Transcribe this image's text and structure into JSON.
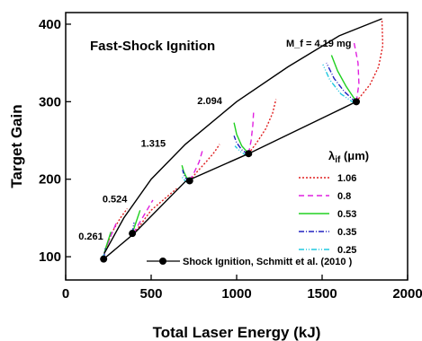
{
  "chart_data": {
    "type": "line",
    "title": "Fast-Shock Ignition",
    "xlabel": "Total Laser Energy   (kJ)",
    "ylabel": "Target Gain",
    "xlim": [
      0,
      2000
    ],
    "ylim": [
      70,
      415
    ],
    "xticks": [
      0,
      500,
      1000,
      1500,
      2000
    ],
    "yticks": [
      100,
      200,
      300,
      400
    ],
    "grid": false,
    "legend_title": "λ_if (μm)",
    "legend_position": "right",
    "mass_annotation": "M_f = 4.19 mg",
    "mass_labels": [
      {
        "text": "0.261",
        "x": 75,
        "y": 122
      },
      {
        "text": "0.524",
        "x": 215,
        "y": 170
      },
      {
        "text": "1.315",
        "x": 440,
        "y": 242
      },
      {
        "text": "2.094",
        "x": 770,
        "y": 297
      }
    ],
    "envelope_upper": {
      "x": [
        225,
        340,
        500,
        700,
        1000,
        1300,
        1600,
        1850
      ],
      "y": [
        104,
        150,
        200,
        245,
        300,
        345,
        385,
        407
      ]
    },
    "envelope_lower": {
      "x": [
        222,
        400,
        700,
        1070,
        1700
      ],
      "y": [
        97,
        130,
        197,
        233,
        300
      ]
    },
    "shock_ignition": {
      "name": "Shock Ignition, Schmitt et al.   (2010 )",
      "x": [
        222,
        390,
        725,
        1070,
        1700
      ],
      "y": [
        97,
        130,
        198,
        233,
        300
      ]
    },
    "series": [
      {
        "name": "1.06",
        "color": "#e02020",
        "dash": "2,2",
        "curves": [
          {
            "x": [
              225,
              250,
              280,
              320,
              360
            ],
            "y": [
              104,
              120,
              135,
              150,
              162
            ]
          },
          {
            "x": [
              400,
              450,
              500,
              580,
              650
            ],
            "y": [
              130,
              145,
              160,
              175,
              188
            ]
          },
          {
            "x": [
              725,
              770,
              820,
              870,
              900
            ],
            "y": [
              198,
              210,
              222,
              235,
              245
            ]
          },
          {
            "x": [
              1070,
              1120,
              1170,
              1210,
              1230
            ],
            "y": [
              233,
              248,
              265,
              285,
              303
            ]
          },
          {
            "x": [
              1700,
              1780,
              1830,
              1855,
              1850
            ],
            "y": [
              300,
              322,
              345,
              372,
              407
            ]
          }
        ]
      },
      {
        "name": "0.8",
        "color": "#e020e0",
        "dash": "6,4",
        "curves": [
          {
            "x": [
              225,
              245,
              270,
              295
            ],
            "y": [
              104,
              116,
              130,
              143
            ]
          },
          {
            "x": [
              395,
              430,
              470,
              510
            ],
            "y": [
              130,
              143,
              158,
              173
            ]
          },
          {
            "x": [
              725,
              750,
              780,
              800
            ],
            "y": [
              198,
              208,
              222,
              237
            ]
          },
          {
            "x": [
              1070,
              1085,
              1095,
              1100
            ],
            "y": [
              233,
              250,
              270,
              290
            ]
          },
          {
            "x": [
              1700,
              1715,
              1710,
              1685
            ],
            "y": [
              300,
              323,
              350,
              378
            ]
          }
        ]
      },
      {
        "name": "0.53",
        "color": "#20d020",
        "dash": "",
        "curves": [
          {
            "x": [
              225,
              235,
              250,
              265
            ],
            "y": [
              104,
              112,
              122,
              132
            ]
          },
          {
            "x": [
              390,
              405,
              420,
              435
            ],
            "y": [
              130,
              140,
              150,
              160
            ]
          },
          {
            "x": [
              725,
              705,
              690,
              680
            ],
            "y": [
              198,
              203,
              210,
              218
            ]
          },
          {
            "x": [
              1070,
              1030,
              1000,
              985
            ],
            "y": [
              233,
              243,
              258,
              273
            ]
          },
          {
            "x": [
              1700,
              1640,
              1590,
              1555
            ],
            "y": [
              300,
              320,
              340,
              360
            ]
          }
        ]
      },
      {
        "name": "0.35",
        "color": "#2020c0",
        "dash": "6,2,1,2",
        "curves": [
          {
            "x": [
              222,
              225,
              228,
              232
            ],
            "y": [
              97,
              101,
              106,
              111
            ]
          },
          {
            "x": [
              390,
              392,
              396,
              400
            ],
            "y": [
              130,
              134,
              139,
              144
            ]
          },
          {
            "x": [
              722,
              700,
              690,
              684
            ],
            "y": [
              197,
              202,
              207,
              212
            ]
          },
          {
            "x": [
              1068,
              1030,
              1000,
              985
            ],
            "y": [
              232,
              238,
              247,
              256
            ]
          },
          {
            "x": [
              1698,
              1630,
              1570,
              1525
            ],
            "y": [
              299,
              313,
              330,
              350
            ]
          }
        ]
      },
      {
        "name": "0.25",
        "color": "#20c8e0",
        "dash": "6,2,1,2,1,2",
        "curves": [
          {
            "x": [
              218,
              220,
              222
            ],
            "y": [
              96,
              99,
              103
            ]
          },
          {
            "x": [
              383,
              384,
              386
            ],
            "y": [
              128,
              131,
              135
            ]
          },
          {
            "x": [
              715,
              695,
              680
            ],
            "y": [
              195,
              199,
              203
            ]
          },
          {
            "x": [
              1062,
              1020,
              990
            ],
            "y": [
              230,
              236,
              243
            ]
          },
          {
            "x": [
              1690,
              1610,
              1545,
              1505
            ],
            "y": [
              298,
              310,
              328,
              348
            ]
          }
        ]
      }
    ]
  }
}
